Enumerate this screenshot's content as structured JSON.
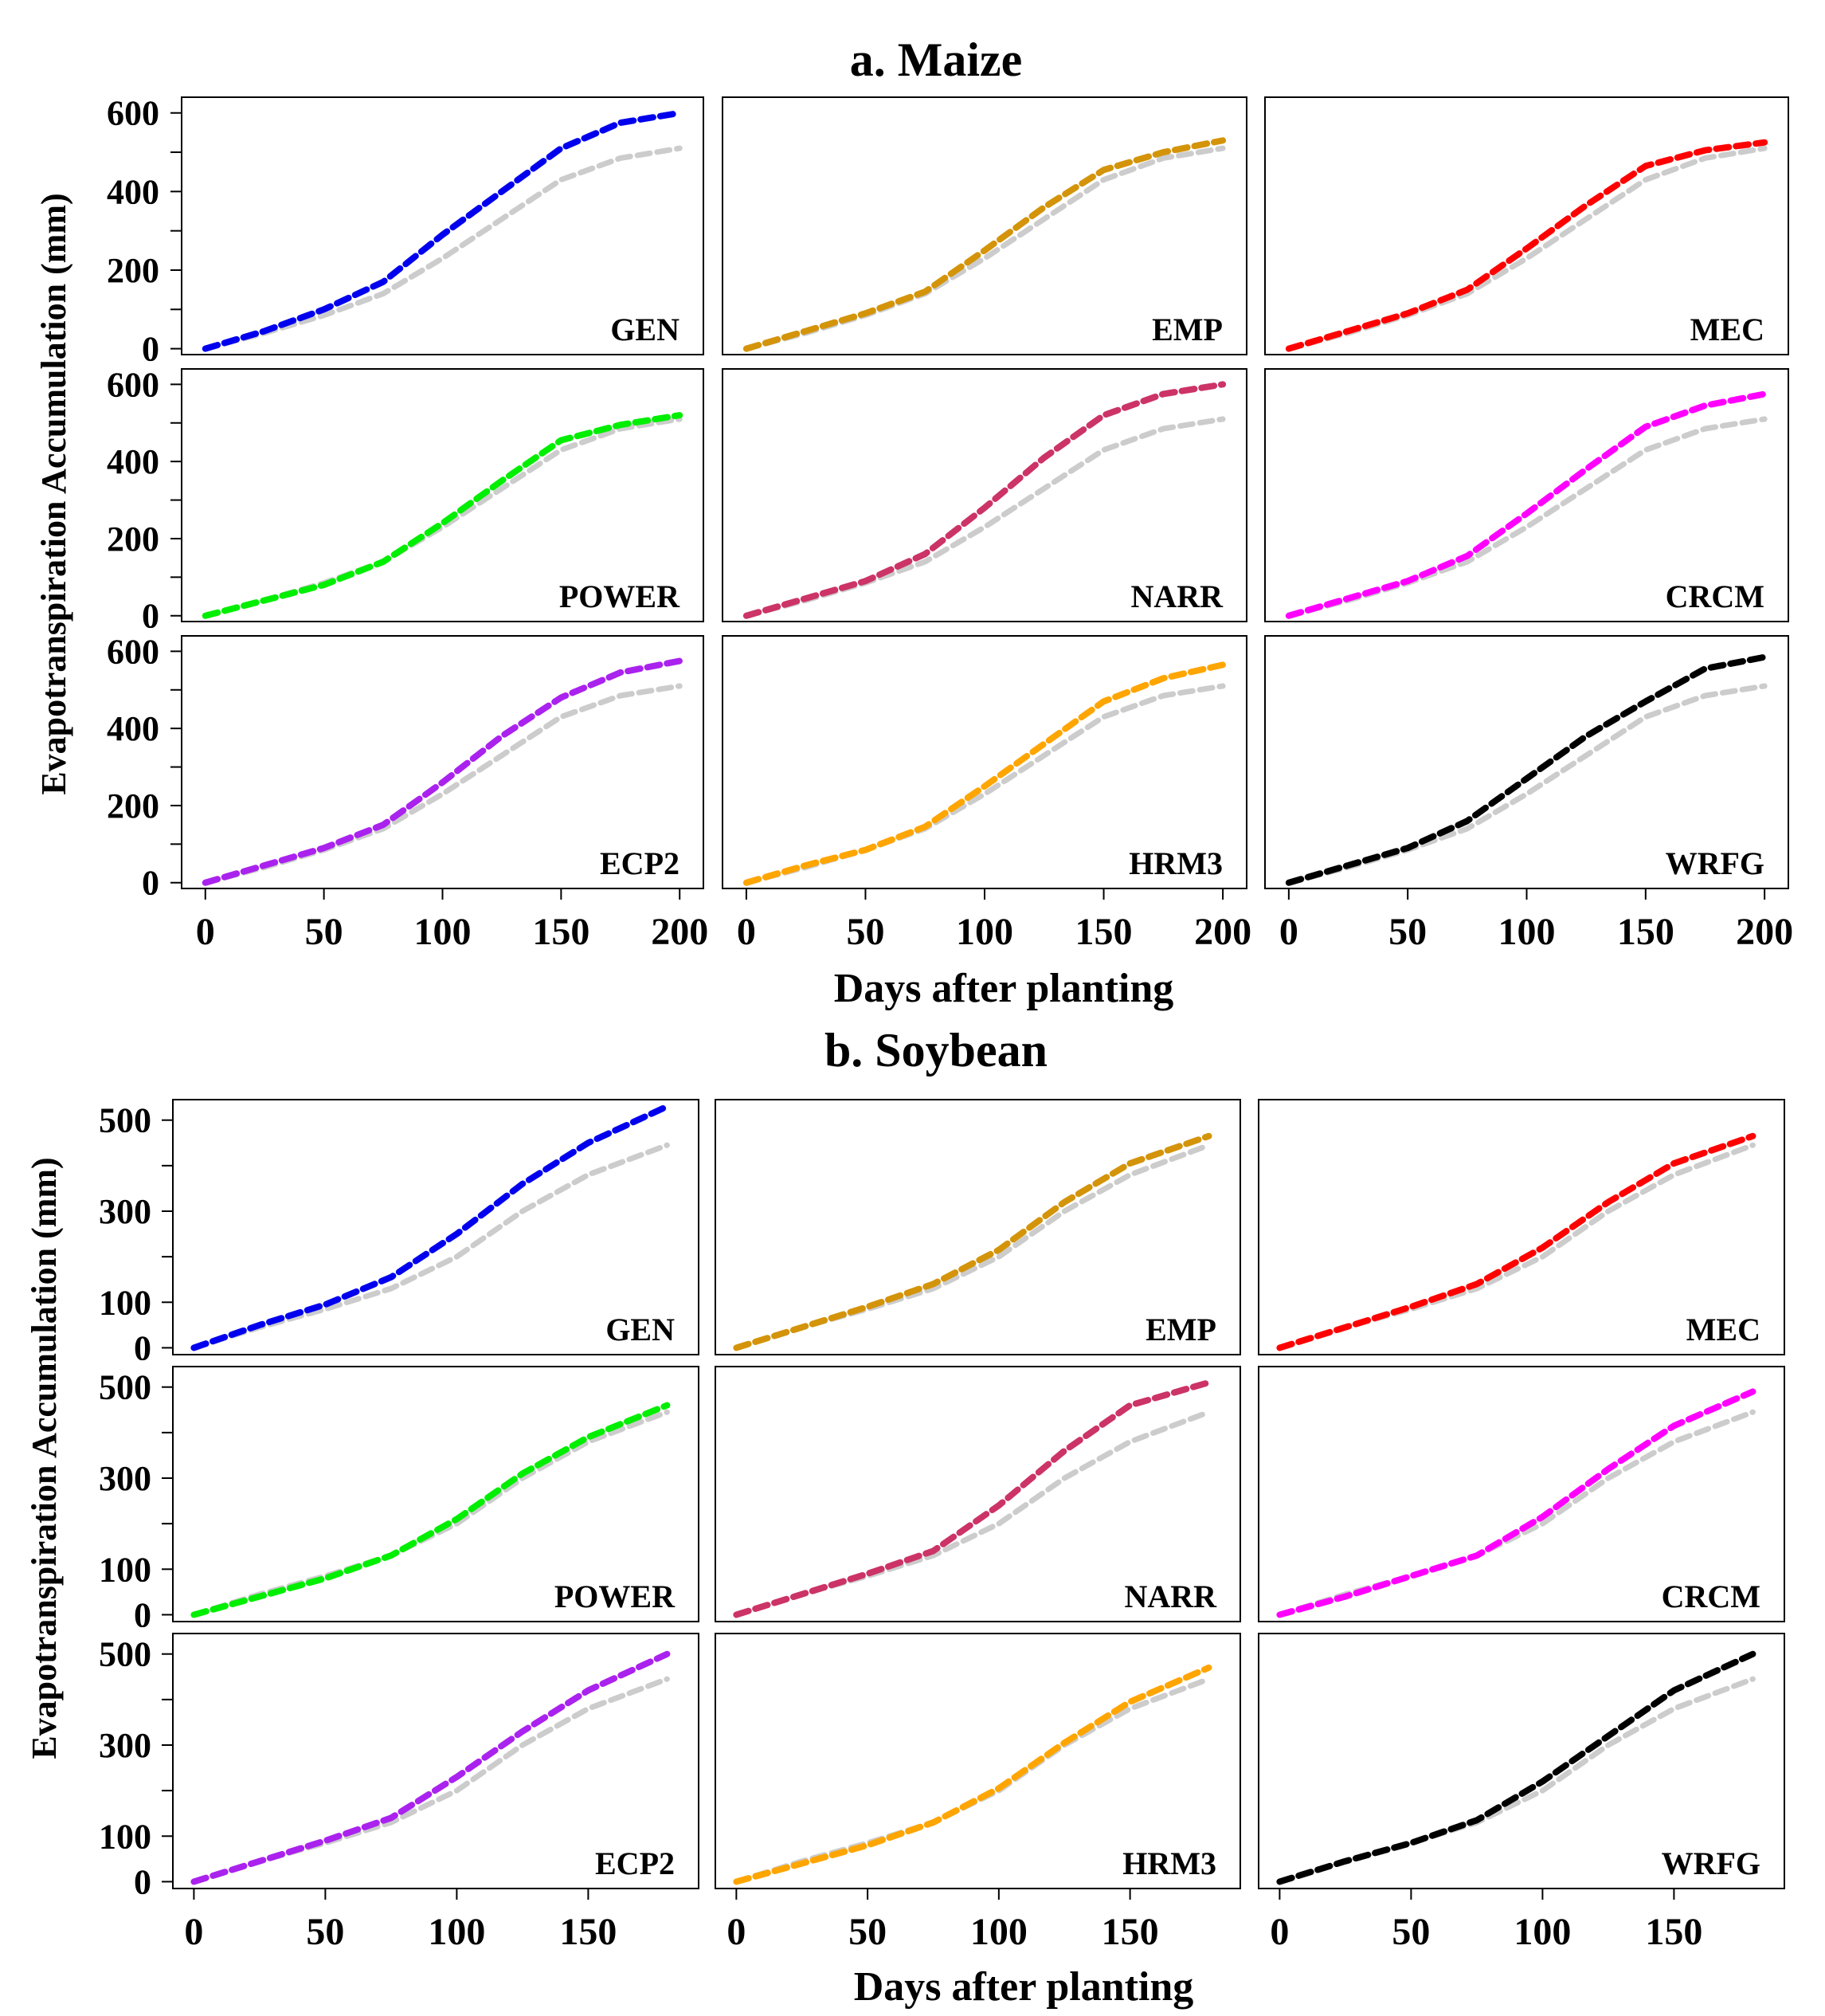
{
  "figure": {
    "sections": [
      {
        "title": "a. Maize",
        "ylabel": "Evapotranspiration Accumulation (mm)",
        "xlabel": "Days after planting",
        "xticks": [
          "0",
          "50",
          "100",
          "150",
          "200"
        ],
        "yticks": [
          "0",
          "200",
          "400",
          "600"
        ],
        "xlim": [
          -10,
          210
        ],
        "ylim": [
          -15,
          640
        ]
      },
      {
        "title": "b. Soybean",
        "ylabel": "Evapotranspiration Accumulation (mm)",
        "xlabel": "Days after planting",
        "xticks": [
          "0",
          "50",
          "100",
          "150"
        ],
        "yticks": [
          "0",
          "100",
          "300",
          "500"
        ],
        "xlim": [
          -8,
          192
        ],
        "ylim": [
          -15,
          545
        ]
      }
    ]
  },
  "chart_data": [
    {
      "type": "line",
      "title": "a. Maize",
      "xlabel": "Days after planting",
      "ylabel": "Evapotranspiration Accumulation (mm)",
      "xlim": [
        0,
        200
      ],
      "ylim": [
        0,
        600
      ],
      "line_style": "dashed",
      "reference_color": "#cccccc",
      "x": [
        0,
        25,
        50,
        75,
        100,
        125,
        150,
        175,
        200
      ],
      "reference_values": [
        0,
        40,
        85,
        140,
        230,
        330,
        430,
        485,
        510
      ],
      "panels": [
        {
          "label": "GEN",
          "color": "#0000ee",
          "values": [
            0,
            45,
            100,
            170,
            290,
            400,
            510,
            575,
            600
          ]
        },
        {
          "label": "EMP",
          "color": "#d4940a",
          "values": [
            0,
            45,
            90,
            145,
            250,
            360,
            455,
            500,
            530
          ]
        },
        {
          "label": "MEC",
          "color": "#ff0000",
          "values": [
            0,
            45,
            90,
            150,
            255,
            365,
            465,
            505,
            525
          ]
        },
        {
          "label": "POWER",
          "color": "#00ee00",
          "values": [
            0,
            40,
            80,
            140,
            240,
            350,
            455,
            495,
            520
          ]
        },
        {
          "label": "NARR",
          "color": "#cc3366",
          "values": [
            0,
            45,
            90,
            160,
            280,
            410,
            520,
            575,
            600
          ]
        },
        {
          "label": "CRCM",
          "color": "#ff00ff",
          "values": [
            0,
            45,
            90,
            155,
            265,
            380,
            490,
            545,
            575
          ]
        },
        {
          "label": "ECP2",
          "color": "#aa22ee",
          "values": [
            0,
            45,
            90,
            150,
            260,
            380,
            480,
            545,
            575
          ]
        },
        {
          "label": "HRM3",
          "color": "#ffa500",
          "values": [
            0,
            45,
            85,
            145,
            250,
            360,
            470,
            530,
            565
          ]
        },
        {
          "label": "WRFG",
          "color": "#000000",
          "values": [
            0,
            45,
            90,
            160,
            270,
            380,
            470,
            555,
            585
          ]
        }
      ]
    },
    {
      "type": "line",
      "title": "b. Soybean",
      "xlabel": "Days after planting",
      "ylabel": "Evapotranspiration Accumulation (mm)",
      "xlim": [
        0,
        180
      ],
      "ylim": [
        0,
        500
      ],
      "line_style": "dashed",
      "reference_color": "#cccccc",
      "x": [
        0,
        25,
        50,
        75,
        100,
        125,
        150,
        180
      ],
      "reference_values": [
        0,
        45,
        85,
        130,
        200,
        300,
        380,
        445
      ],
      "panels": [
        {
          "label": "GEN",
          "color": "#0000ee",
          "values": [
            0,
            50,
            95,
            155,
            250,
            360,
            450,
            530
          ]
        },
        {
          "label": "EMP",
          "color": "#d4940a",
          "values": [
            0,
            45,
            90,
            140,
            215,
            320,
            405,
            465
          ]
        },
        {
          "label": "MEC",
          "color": "#ff0000",
          "values": [
            0,
            45,
            90,
            140,
            220,
            320,
            405,
            465
          ]
        },
        {
          "label": "POWER",
          "color": "#00ee00",
          "values": [
            0,
            40,
            80,
            130,
            210,
            310,
            390,
            460
          ]
        },
        {
          "label": "NARR",
          "color": "#cc3366",
          "values": [
            0,
            45,
            90,
            140,
            240,
            360,
            460,
            510
          ]
        },
        {
          "label": "CRCM",
          "color": "#ff00ff",
          "values": [
            0,
            40,
            85,
            130,
            215,
            320,
            415,
            490
          ]
        },
        {
          "label": "ECP2",
          "color": "#aa22ee",
          "values": [
            0,
            45,
            90,
            140,
            230,
            330,
            420,
            500
          ]
        },
        {
          "label": "HRM3",
          "color": "#ffa500",
          "values": [
            0,
            40,
            80,
            130,
            205,
            305,
            395,
            470
          ]
        },
        {
          "label": "WRFG",
          "color": "#000000",
          "values": [
            0,
            45,
            85,
            135,
            220,
            320,
            420,
            500
          ]
        }
      ]
    }
  ]
}
